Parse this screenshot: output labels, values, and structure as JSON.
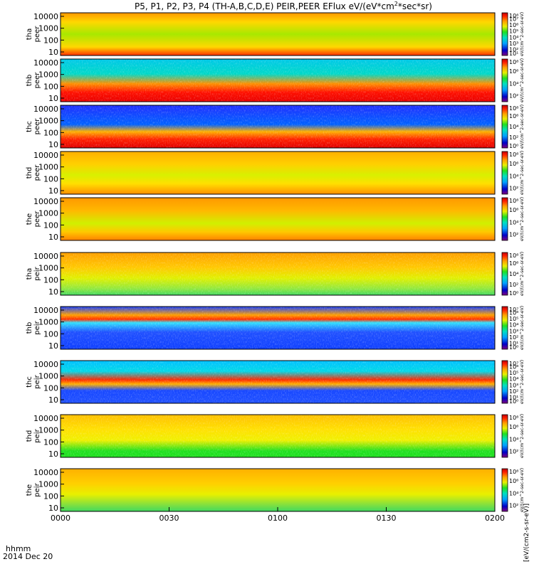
{
  "chart_data": {
    "type": "heatmap",
    "title": "P5, P1, P2, P3, P4 (TH-A,B,C,D,E) PEIR,PEER EFlux eV/(eV*cm²*sec*sr)",
    "title_parts": {
      "main": "P5, P1, P2, P3, P4 (TH-A,B,C,D,E) PEIR,PEER EFlux eV/(eV*cm",
      "sup": "2",
      "tail": "*sec*sr)"
    },
    "xlabel_row1": "hhmm",
    "xlabel_row2": "2014 Dec 20",
    "x_ticks": [
      "0000",
      "0030",
      "0100",
      "0130",
      "0200"
    ],
    "x_tick_minutes": [
      0,
      30,
      60,
      90,
      120
    ],
    "xlim_minutes": [
      0,
      120
    ],
    "colorbar_unit_label": "[eV/(cm2-s-sr-eV)]",
    "panels": [
      {
        "id": "tha-peer",
        "probe": "tha",
        "species": "peer",
        "y_ticks": [
          "10000",
          "1000",
          "100",
          "10"
        ],
        "cb_ticks": [
          "10⁸",
          "10⁷",
          "10⁶",
          "10⁵",
          "10⁴",
          "10³",
          "10²",
          "10¹"
        ],
        "cb_min_exp": 1,
        "cb_max_exp": 8,
        "colorbar_text": "eV/(cm^2-sec-sr-eV)"
      },
      {
        "id": "thb-peer",
        "probe": "thb",
        "species": "peer",
        "y_ticks": [
          "10000",
          "1000",
          "100",
          "10"
        ],
        "cb_ticks": [
          "10⁸",
          "10⁶",
          "10⁴",
          "10²"
        ],
        "cb_min_exp": 1,
        "cb_max_exp": 8,
        "colorbar_text": "eV/(cm^2-sec-sr-eV)"
      },
      {
        "id": "thc-peer",
        "probe": "thc",
        "species": "peer",
        "y_ticks": [
          "10000",
          "1000",
          "100",
          "10"
        ],
        "cb_ticks": [
          "10⁸",
          "10⁶",
          "10⁴",
          "10²",
          "10⁰"
        ],
        "cb_min_exp": 0,
        "cb_max_exp": 8,
        "colorbar_text": "eV/(cm^2-sec-sr-eV)"
      },
      {
        "id": "thd-peer",
        "probe": "thd",
        "species": "peer",
        "y_ticks": [
          "10000",
          "1000",
          "100",
          "10"
        ],
        "cb_ticks": [
          "10⁸",
          "10⁶",
          "10⁴",
          "10²"
        ],
        "cb_min_exp": 1,
        "cb_max_exp": 8,
        "colorbar_text": "eV/(cm^2-sec-sr-eV)"
      },
      {
        "id": "the-peer",
        "probe": "the",
        "species": "peer",
        "y_ticks": [
          "10000",
          "1000",
          "100",
          "10"
        ],
        "cb_ticks": [
          "10⁸",
          "10⁶",
          "10⁴",
          "10²"
        ],
        "cb_min_exp": 1,
        "cb_max_exp": 8,
        "colorbar_text": "eV/(cm^2-sec-sr-eV)"
      },
      {
        "id": "tha-peir",
        "probe": "tha",
        "species": "peir",
        "y_ticks": [
          "10000",
          "1000",
          "100",
          "10"
        ],
        "cb_ticks": [
          "10⁸",
          "10⁶",
          "10⁴",
          "10²",
          "10⁰"
        ],
        "cb_min_exp": 0,
        "cb_max_exp": 8,
        "colorbar_text": "eV/(cm^2-sec-sr-eV)"
      },
      {
        "id": "thb-peir",
        "probe": "thb",
        "species": "peir",
        "y_ticks": [
          "10000",
          "1000",
          "100",
          "10"
        ],
        "cb_ticks": [
          "10⁷",
          "10⁶",
          "10⁵",
          "10⁴",
          "10³",
          "10²",
          "10¹",
          "10⁰"
        ],
        "cb_min_exp": 0,
        "cb_max_exp": 7,
        "colorbar_text": "eV/(cm^2-sec-sr-eV)"
      },
      {
        "id": "thc-peir",
        "probe": "thc",
        "species": "peir",
        "y_ticks": [
          "10000",
          "1000",
          "100",
          "10"
        ],
        "cb_ticks": [
          "10⁷",
          "10⁶",
          "10⁵",
          "10⁴",
          "10³",
          "10²",
          "10¹",
          "10⁰"
        ],
        "cb_min_exp": 0,
        "cb_max_exp": 7,
        "colorbar_text": "eV/(cm^2-sec-sr-eV)"
      },
      {
        "id": "thd-peir",
        "probe": "thd",
        "species": "peir",
        "y_ticks": [
          "10000",
          "1000",
          "100",
          "10"
        ],
        "cb_ticks": [
          "10⁸",
          "10⁶",
          "10⁴",
          "10²"
        ],
        "cb_min_exp": 1,
        "cb_max_exp": 8,
        "colorbar_text": "eV/(cm^2-sec-sr-eV)"
      },
      {
        "id": "the-peir",
        "probe": "the",
        "species": "peir",
        "y_ticks": [
          "10000",
          "1000",
          "100",
          "10"
        ],
        "cb_ticks": [
          "10⁸",
          "10⁶",
          "10⁴",
          "10²"
        ],
        "cb_min_exp": 1,
        "cb_max_exp": 8,
        "colorbar_text": "eV/(cm^2-sec-sr-eV)"
      }
    ]
  }
}
